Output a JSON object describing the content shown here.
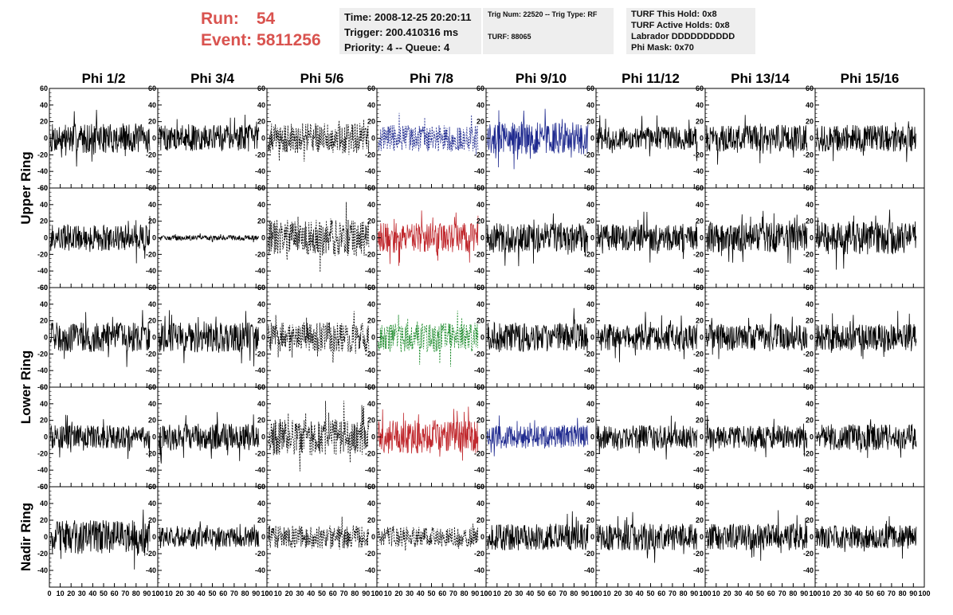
{
  "run_info": {
    "run_label": "Run:",
    "run_value": "54",
    "event_label": "Event:",
    "event_value": "5811256",
    "color": "#d9534f"
  },
  "trigger_info": {
    "time": "Time: 2008-12-25 20:20:11",
    "trigger": "Trigger: 200.410316 ms",
    "priority": "Priority: 4 -- Queue: 4"
  },
  "trig_info": {
    "trig_line": "Trig Num: 22520 -- Trig Type: RF",
    "turf_line": "TURF: 88065"
  },
  "turf_info": {
    "this_hold": "TURF This Hold: 0x8",
    "active_holds": "TURF Active Holds: 0x8",
    "labrador": "Labrador DDDDDDDDDD",
    "phi_mask": "Phi Mask: 0x70"
  },
  "columns": [
    "Phi 1/2",
    "Phi 3/4",
    "Phi 5/6",
    "Phi 7/8",
    "Phi 9/10",
    "Phi 11/12",
    "Phi 13/14",
    "Phi 15/16"
  ],
  "row_labels": [
    "Upper Ring",
    "Lower Ring",
    "Nadir Ring"
  ],
  "y_ticks": [
    "60",
    "40",
    "20",
    "0",
    "-20",
    "-40",
    "-60"
  ],
  "x_ticks": [
    "0",
    "10",
    "20",
    "30",
    "40",
    "50",
    "60",
    "70",
    "80",
    "90",
    "100"
  ],
  "chart_data": {
    "type": "line",
    "x_range": [
      0,
      100
    ],
    "y_range": [
      -60,
      60
    ],
    "grid": false,
    "series_colors": {
      "black": "#000000",
      "blue": "#1f2a8f",
      "red": "#c0282d",
      "green": "#1b8a2a"
    },
    "panel_styles": [
      [
        "black",
        "black",
        "black-dashed",
        "blue-dashed",
        "blue",
        "black",
        "black",
        "black"
      ],
      [
        "black",
        "black",
        "black-dashed",
        "red",
        "black",
        "black",
        "black",
        "black"
      ],
      [
        "black",
        "black",
        "black-dashed",
        "green-dashed",
        "black",
        "black",
        "black",
        "black"
      ],
      [
        "black",
        "black",
        "black-dashed",
        "red",
        "blue",
        "black",
        "black",
        "black"
      ],
      [
        "black",
        "black",
        "black-dashed",
        "black-dashed",
        "black",
        "black",
        "black",
        "black"
      ]
    ],
    "panel_amplitudes": [
      [
        18,
        16,
        18,
        16,
        20,
        14,
        16,
        16
      ],
      [
        16,
        3,
        22,
        18,
        18,
        16,
        18,
        20
      ],
      [
        18,
        18,
        18,
        18,
        18,
        16,
        16,
        16
      ],
      [
        14,
        16,
        22,
        20,
        14,
        14,
        14,
        16
      ],
      [
        20,
        12,
        14,
        12,
        16,
        16,
        16,
        14
      ]
    ]
  }
}
